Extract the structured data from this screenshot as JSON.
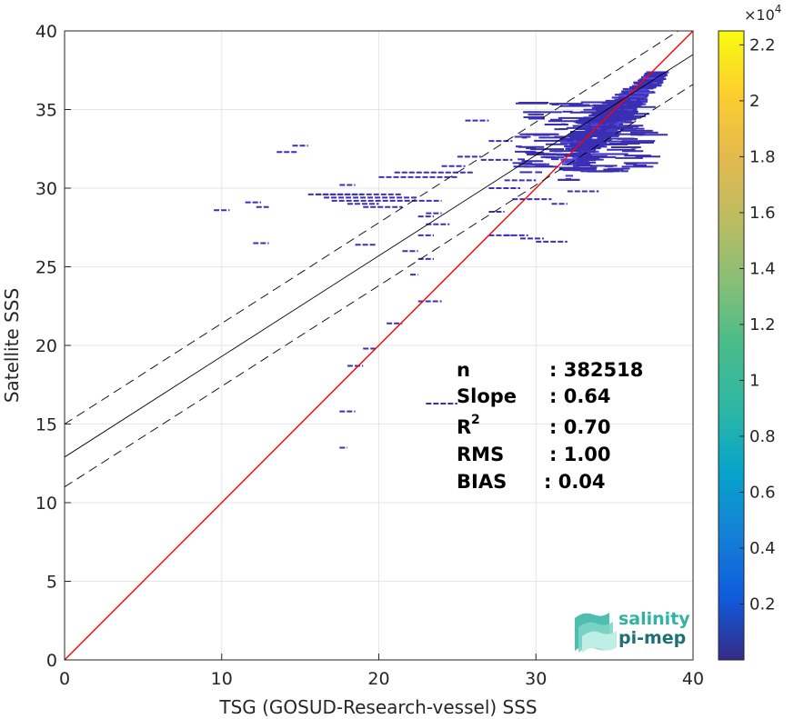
{
  "chart_data": {
    "type": "heatmap",
    "xlabel": "TSG (GOSUD-Research-vessel) SSS",
    "ylabel": "Satellite SSS",
    "xlim": [
      0,
      40
    ],
    "ylim": [
      0,
      40
    ],
    "x_ticks": [
      "0",
      "10",
      "20",
      "30",
      "40"
    ],
    "y_ticks": [
      "0",
      "5",
      "10",
      "15",
      "20",
      "25",
      "30",
      "35",
      "40"
    ],
    "grid": true,
    "colorbar": {
      "range": [
        0,
        22500
      ],
      "exponent_label": "×10",
      "exponent_power": "4",
      "ticks": [
        "0.2",
        "0.4",
        "0.6",
        "0.8",
        "1",
        "1.2",
        "1.4",
        "1.6",
        "1.8",
        "2",
        "2.2"
      ],
      "colormap": "parula"
    },
    "lines": [
      {
        "role": "identity",
        "color": "#ff0000",
        "style": "solid",
        "slope": 1.0,
        "intercept": 0.0
      },
      {
        "role": "regression",
        "color": "#000000",
        "style": "solid",
        "slope": 0.64,
        "intercept": 12.9
      },
      {
        "role": "regression-upper",
        "color": "#000000",
        "style": "dashed",
        "slope": 0.64,
        "intercept": 15.0
      },
      {
        "role": "regression-lower",
        "color": "#000000",
        "style": "dashed",
        "slope": 0.64,
        "intercept": 11.0
      }
    ],
    "density_segments": [
      [
        9.5,
        10.5,
        28.6
      ],
      [
        11.5,
        12.5,
        29.1
      ],
      [
        12.2,
        13.0,
        28.8
      ],
      [
        12.0,
        13.0,
        26.5
      ],
      [
        13.5,
        14.8,
        32.3
      ],
      [
        14.5,
        15.5,
        32.7
      ],
      [
        16.0,
        19.0,
        29.6
      ],
      [
        15.5,
        21.5,
        29.6
      ],
      [
        16.5,
        22.5,
        29.4
      ],
      [
        17.0,
        24.0,
        29.2
      ],
      [
        18.0,
        20.0,
        29.0
      ],
      [
        19.0,
        21.5,
        28.8
      ],
      [
        17.5,
        18.5,
        30.2
      ],
      [
        20.0,
        25.0,
        30.7
      ],
      [
        21.0,
        26.0,
        31.0
      ],
      [
        24.0,
        25.5,
        31.4
      ],
      [
        25.0,
        26.5,
        32.0
      ],
      [
        22.5,
        23.5,
        28.2
      ],
      [
        23.0,
        24.0,
        28.4
      ],
      [
        23.0,
        24.5,
        27.7
      ],
      [
        22.5,
        23.5,
        27.0
      ],
      [
        21.5,
        22.5,
        26.0
      ],
      [
        22.5,
        23.5,
        25.5
      ],
      [
        22.0,
        22.5,
        24.5
      ],
      [
        18.5,
        19.8,
        26.4
      ],
      [
        22.5,
        24.0,
        22.8
      ],
      [
        20.5,
        21.5,
        21.4
      ],
      [
        19.0,
        19.8,
        19.8
      ],
      [
        18.0,
        19.0,
        18.7
      ],
      [
        17.5,
        18.5,
        15.8
      ],
      [
        23.0,
        25.0,
        16.3
      ],
      [
        17.5,
        18.0,
        13.5
      ],
      [
        25.5,
        27.0,
        34.3
      ],
      [
        27.0,
        28.5,
        33.0
      ],
      [
        26.5,
        28.5,
        31.8
      ],
      [
        27.0,
        29.0,
        30.0
      ],
      [
        28.0,
        30.0,
        30.5
      ],
      [
        28.5,
        31.0,
        29.3
      ],
      [
        27.0,
        28.5,
        27.0
      ],
      [
        28.0,
        29.5,
        27.0
      ],
      [
        30.0,
        32.0,
        26.6
      ],
      [
        29.0,
        30.5,
        26.8
      ],
      [
        27.0,
        28.0,
        28.5
      ],
      [
        31.0,
        32.0,
        29.0
      ],
      [
        32.0,
        34.0,
        29.8
      ]
    ],
    "stats": [
      {
        "label": "n",
        "value": ": 382518"
      },
      {
        "label": "Slope",
        "value": ": 0.64"
      },
      {
        "label": "R",
        "sup": "2",
        "value": ": 0.70"
      },
      {
        "label": "RMS",
        "value": ": 1.00"
      },
      {
        "label": "BIAS",
        "value": ": 0.04"
      }
    ]
  },
  "logo": {
    "line1": "salinity",
    "line2": "pi-mep",
    "colors": [
      "#2fb3a3",
      "#1d6f78"
    ]
  }
}
